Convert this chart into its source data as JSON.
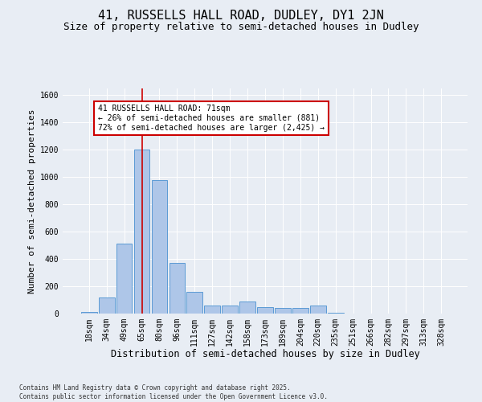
{
  "title": "41, RUSSELLS HALL ROAD, DUDLEY, DY1 2JN",
  "subtitle": "Size of property relative to semi-detached houses in Dudley",
  "xlabel": "Distribution of semi-detached houses by size in Dudley",
  "ylabel": "Number of semi-detached properties",
  "categories": [
    "18sqm",
    "34sqm",
    "49sqm",
    "65sqm",
    "80sqm",
    "96sqm",
    "111sqm",
    "127sqm",
    "142sqm",
    "158sqm",
    "173sqm",
    "189sqm",
    "204sqm",
    "220sqm",
    "235sqm",
    "251sqm",
    "266sqm",
    "282sqm",
    "297sqm",
    "313sqm",
    "328sqm"
  ],
  "values": [
    10,
    120,
    510,
    1200,
    980,
    370,
    160,
    60,
    60,
    90,
    50,
    40,
    40,
    60,
    5,
    2,
    1,
    1,
    1,
    1,
    1
  ],
  "bar_color": "#aec6e8",
  "bar_edge_color": "#5b9bd5",
  "vline_x": 3.0,
  "annotation_text": "41 RUSSELLS HALL ROAD: 71sqm\n← 26% of semi-detached houses are smaller (881)\n72% of semi-detached houses are larger (2,425) →",
  "annotation_box_facecolor": "#ffffff",
  "annotation_box_edgecolor": "#cc0000",
  "vline_color": "#cc0000",
  "ylim": [
    0,
    1650
  ],
  "yticks": [
    0,
    200,
    400,
    600,
    800,
    1000,
    1200,
    1400,
    1600
  ],
  "bg_color": "#e8edf4",
  "footer_line1": "Contains HM Land Registry data © Crown copyright and database right 2025.",
  "footer_line2": "Contains public sector information licensed under the Open Government Licence v3.0.",
  "title_fontsize": 11,
  "subtitle_fontsize": 9,
  "ylabel_fontsize": 8,
  "xlabel_fontsize": 8.5,
  "tick_fontsize": 7,
  "annot_fontsize": 7,
  "footer_fontsize": 5.5
}
